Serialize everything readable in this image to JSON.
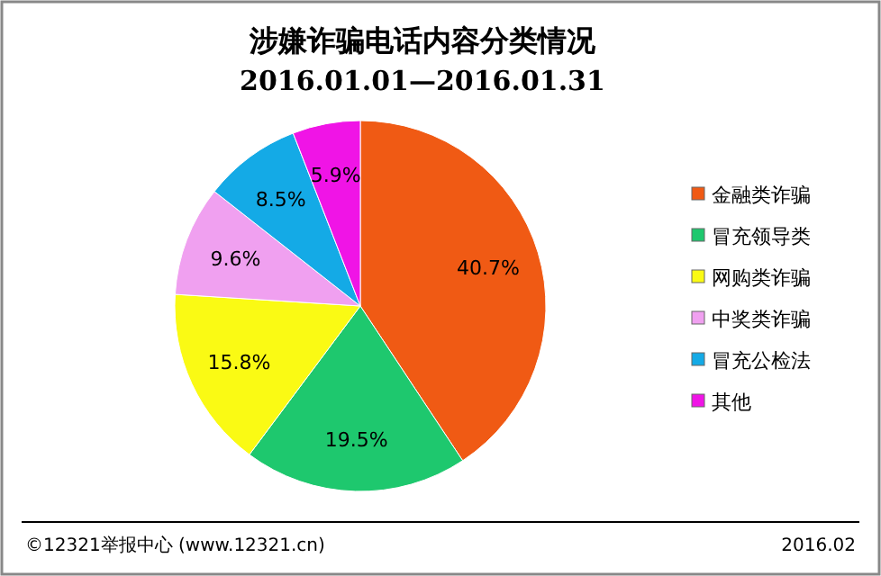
{
  "chart_data": {
    "type": "pie",
    "title": "涉嫌诈骗电话内容分类情况",
    "subtitle": "2016.01.01—2016.01.31",
    "categories": [
      "金融类诈骗",
      "冒充领导类",
      "网购类诈骗",
      "中奖类诈骗",
      "冒充公检法",
      "其他"
    ],
    "values": [
      40.7,
      19.5,
      15.8,
      9.6,
      8.5,
      5.9
    ],
    "colors": [
      "#f05a14",
      "#1ec86e",
      "#fafa14",
      "#f0a0f0",
      "#14aae6",
      "#f014e6"
    ],
    "value_labels": [
      "40.7%",
      "19.5%",
      "15.8%",
      "9.6%",
      "8.5%",
      "5.9%"
    ],
    "legend": "right",
    "annotations": [
      "©12321举报中心 (www.12321.cn)",
      "2016.02"
    ]
  }
}
